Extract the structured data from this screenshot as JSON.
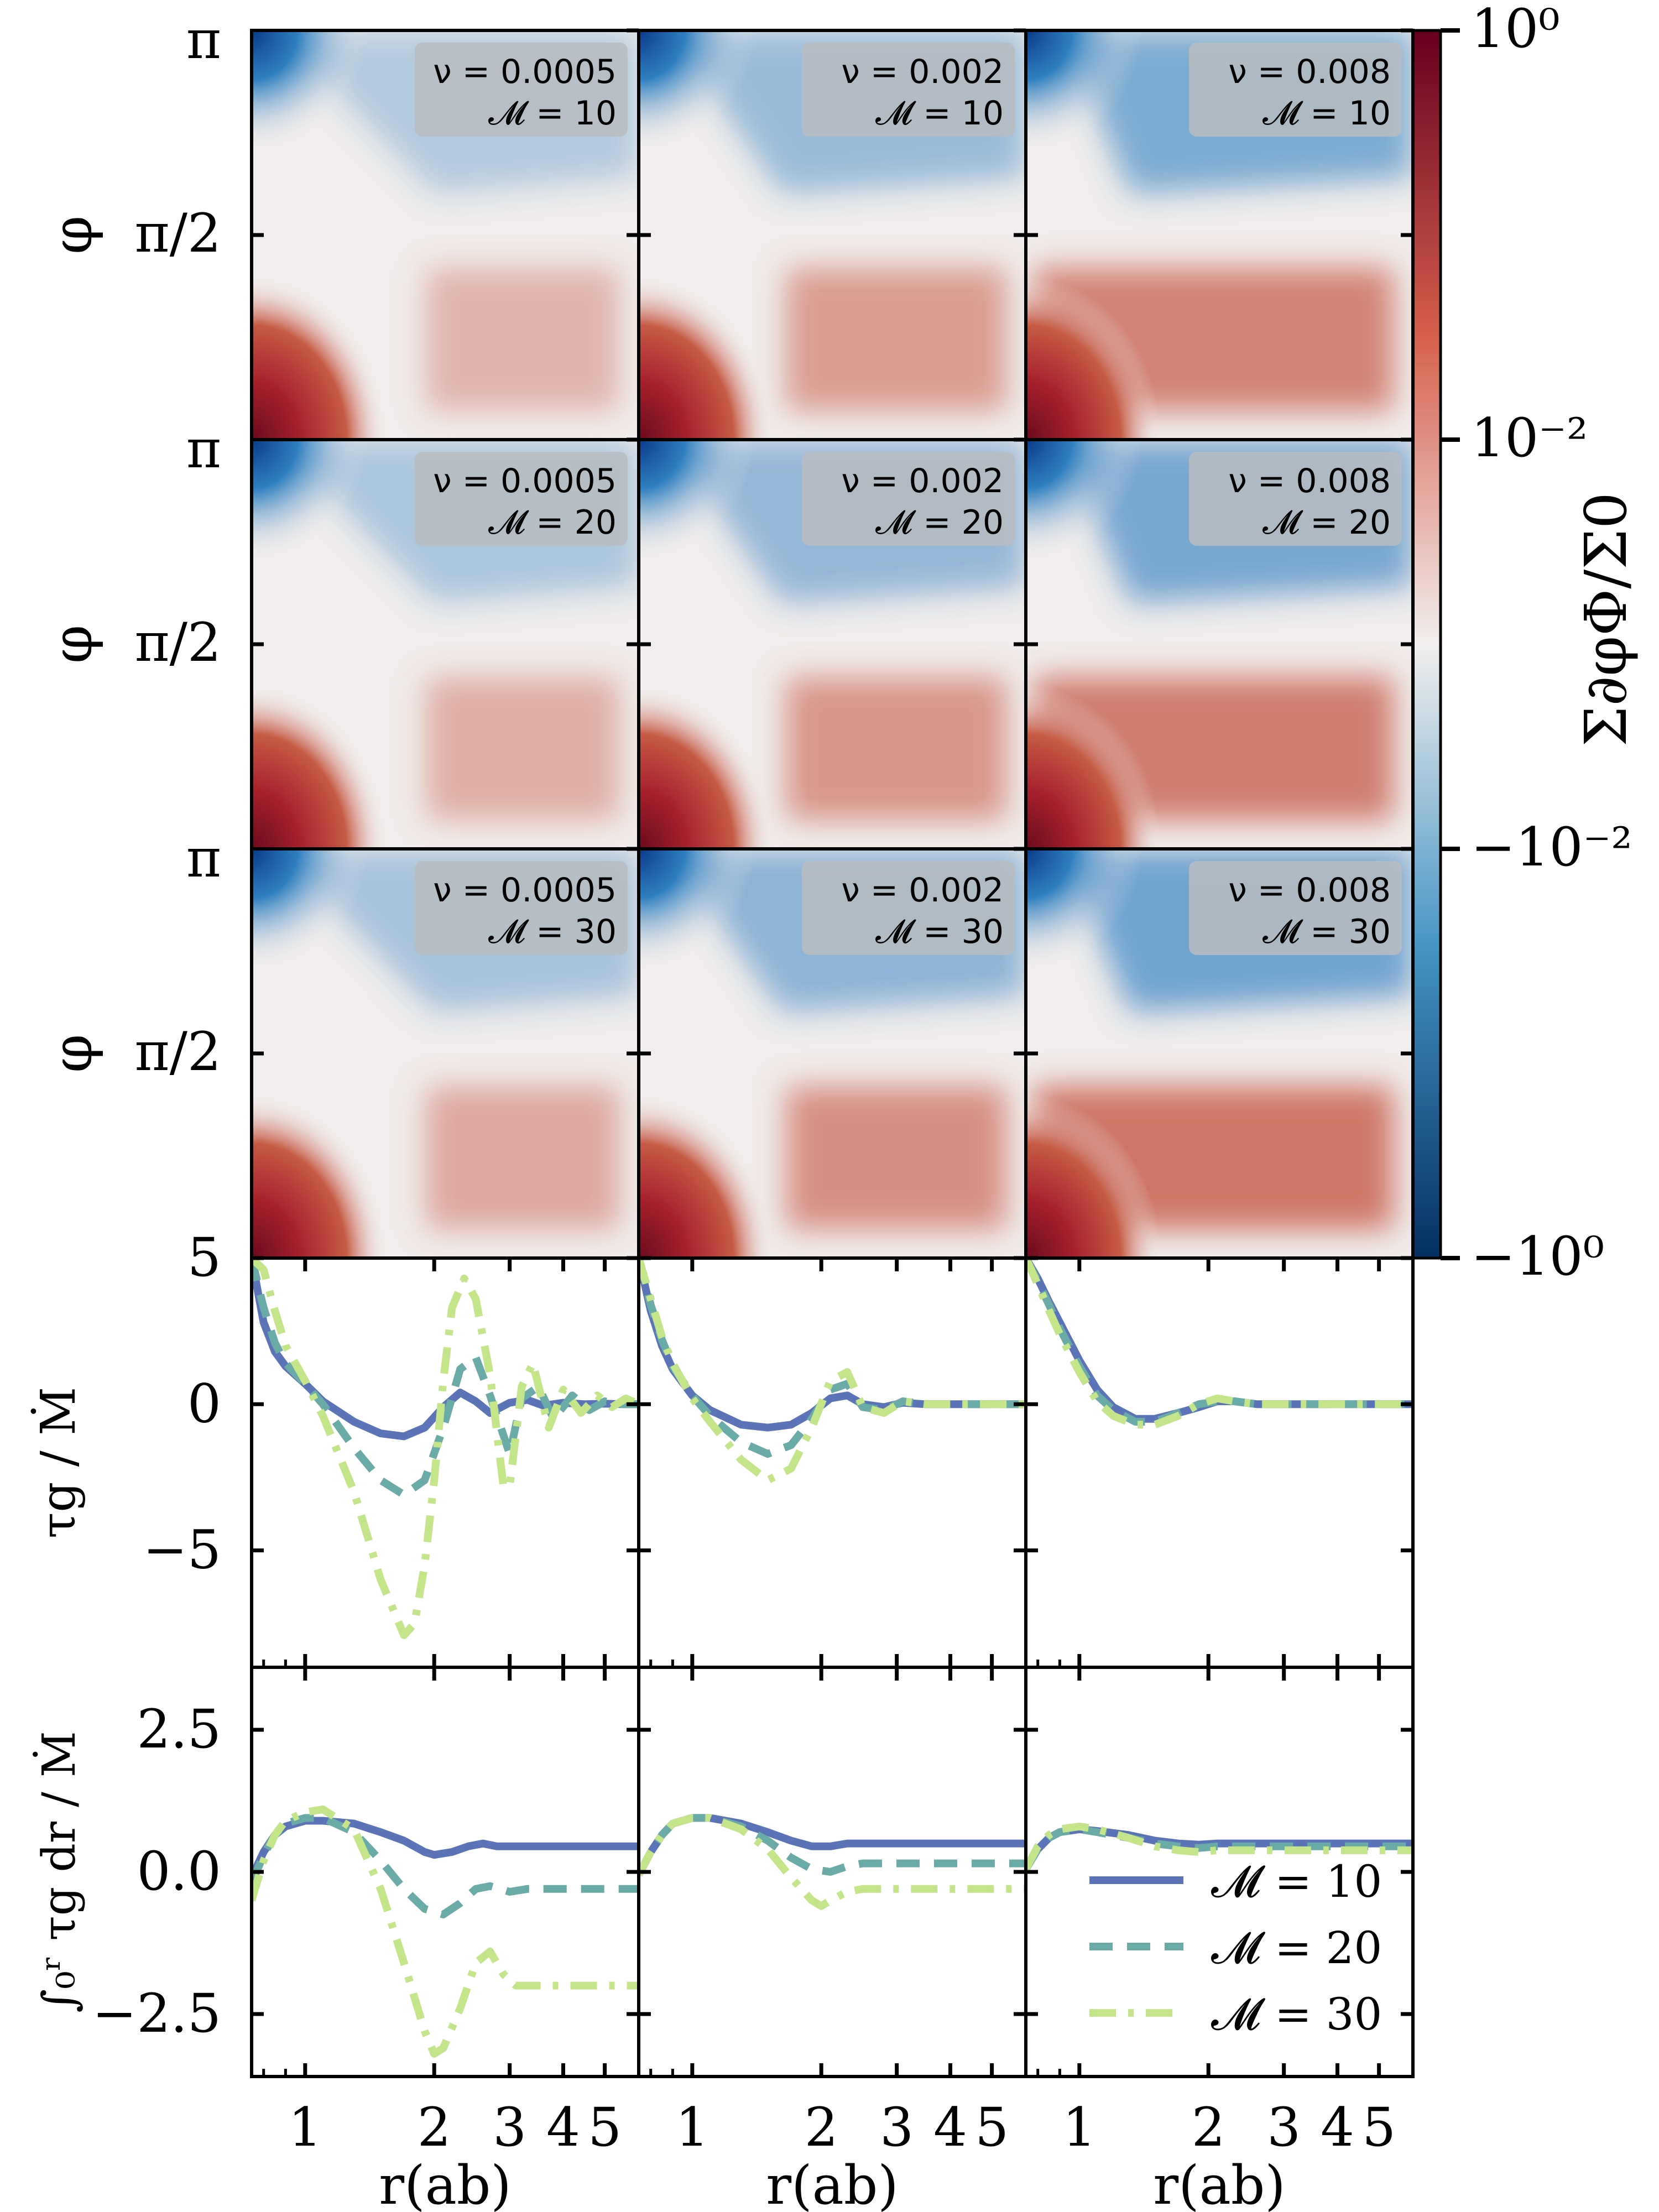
{
  "chart_data": [
    {
      "type": "heatmap",
      "description_of_field": "map panels",
      "y_ticks": [
        "π/2",
        "π"
      ],
      "y_label": "φ",
      "columns": [
        {
          "nu": "ν = 0.0005"
        },
        {
          "nu": "ν = 0.002"
        },
        {
          "nu": "ν = 0.008"
        }
      ],
      "rows": [
        {
          "mach": "𝓜 = 10"
        },
        {
          "mach": "𝓜 = 20"
        },
        {
          "mach": "𝓜 = 30"
        }
      ],
      "colorbar": {
        "label": "Σ∂φΦ/Σ0",
        "tick_labels": [
          "10⁰",
          "10⁻²",
          "−10⁻²",
          "−10⁰"
        ],
        "colors_top_to_bottom": [
          "#67001f",
          "#d6604d",
          "#f2efee",
          "#4393c3",
          "#053061"
        ]
      }
    },
    {
      "type": "line",
      "ylabel": "τg / Ṁ",
      "ylim": [
        -9,
        5
      ],
      "yticks": [
        "5",
        "0",
        "−5"
      ],
      "series_names": [
        "𝓜 = 10",
        "𝓜 = 20",
        "𝓜 = 30"
      ],
      "panels": [
        {
          "series": [
            {
              "name": "𝓜 = 10",
              "x": [
                0.75,
                0.8,
                0.85,
                0.9,
                1.0,
                1.1,
                1.3,
                1.5,
                1.7,
                1.9,
                2.1,
                2.3,
                2.5,
                2.7,
                3.0,
                3.3,
                3.6,
                4.0,
                4.5,
                5.0,
                5.5,
                6.0
              ],
              "values": [
                5,
                2.8,
                1.8,
                1.3,
                0.7,
                0.1,
                -0.6,
                -1.0,
                -1.1,
                -0.8,
                -0.1,
                0.4,
                0.1,
                -0.3,
                0.05,
                0.15,
                -0.05,
                0.05,
                0.0,
                0.02,
                0.0,
                0.0
              ]
            },
            {
              "name": "𝓜 = 20",
              "x": [
                0.75,
                0.8,
                0.85,
                0.9,
                1.0,
                1.1,
                1.3,
                1.5,
                1.7,
                1.9,
                2.1,
                2.3,
                2.5,
                2.7,
                3.0,
                3.2,
                3.5,
                3.8,
                4.2,
                4.6,
                5.0,
                5.5,
                6.0
              ],
              "values": [
                5,
                3.3,
                2.1,
                1.4,
                0.7,
                0.0,
                -1.5,
                -2.6,
                -3.1,
                -2.6,
                -0.8,
                1.2,
                1.6,
                0.3,
                -1.7,
                0.2,
                0.6,
                -0.5,
                0.3,
                -0.2,
                0.1,
                0.0,
                0.0
              ]
            },
            {
              "name": "𝓜 = 30",
              "x": [
                0.75,
                0.8,
                0.85,
                0.9,
                1.0,
                1.1,
                1.3,
                1.5,
                1.7,
                1.8,
                1.9,
                2.0,
                2.1,
                2.2,
                2.35,
                2.5,
                2.7,
                2.9,
                3.0,
                3.2,
                3.4,
                3.7,
                4.0,
                4.4,
                4.8,
                5.2,
                5.6,
                6.0
              ],
              "values": [
                5,
                4.6,
                3.2,
                2.0,
                0.8,
                -0.4,
                -3.0,
                -6.0,
                -7.9,
                -7.5,
                -5.5,
                -2.6,
                0.8,
                3.3,
                4.3,
                3.6,
                1.0,
                -2.8,
                -2.8,
                0.6,
                1.4,
                -0.8,
                0.5,
                -0.3,
                0.3,
                -0.1,
                0.2,
                0.0
              ]
            }
          ]
        },
        {
          "series": [
            {
              "name": "𝓜 = 10",
              "x": [
                0.75,
                0.8,
                0.85,
                0.9,
                1.0,
                1.1,
                1.3,
                1.5,
                1.7,
                1.9,
                2.1,
                2.3,
                2.5,
                2.8,
                3.1,
                3.5,
                4.0,
                5.0,
                6.0
              ],
              "values": [
                5,
                3.2,
                2.0,
                1.2,
                0.3,
                -0.2,
                -0.7,
                -0.8,
                -0.7,
                -0.3,
                0.2,
                0.3,
                0.0,
                -0.1,
                0.05,
                0.0,
                0.0,
                0.0,
                0.0
              ]
            },
            {
              "name": "𝓜 = 20",
              "x": [
                0.75,
                0.8,
                0.85,
                0.9,
                1.0,
                1.1,
                1.3,
                1.5,
                1.7,
                1.9,
                2.1,
                2.3,
                2.5,
                2.8,
                3.1,
                3.5,
                4.0,
                5.0,
                6.0
              ],
              "values": [
                5,
                3.4,
                2.2,
                1.3,
                0.3,
                -0.4,
                -1.3,
                -1.7,
                -1.4,
                -0.5,
                0.5,
                0.7,
                -0.1,
                -0.2,
                0.1,
                0.0,
                0.0,
                0.0,
                0.0
              ]
            },
            {
              "name": "𝓜 = 30",
              "x": [
                0.75,
                0.8,
                0.85,
                0.9,
                1.0,
                1.1,
                1.3,
                1.5,
                1.7,
                1.9,
                2.1,
                2.3,
                2.5,
                2.8,
                3.1,
                3.5,
                4.0,
                5.0,
                6.0
              ],
              "values": [
                5,
                3.6,
                2.3,
                1.4,
                0.2,
                -0.6,
                -1.9,
                -2.6,
                -2.2,
                -0.8,
                0.8,
                1.1,
                -0.1,
                -0.3,
                0.1,
                0.0,
                0.0,
                0.0,
                0.0
              ]
            }
          ]
        },
        {
          "series": [
            {
              "name": "𝓜 = 10",
              "x": [
                0.75,
                0.8,
                0.85,
                0.9,
                1.0,
                1.1,
                1.2,
                1.35,
                1.5,
                1.7,
                1.9,
                2.1,
                2.3,
                2.6,
                3.0,
                4.0,
                5.0,
                6.0
              ],
              "values": [
                5,
                4.3,
                3.5,
                2.8,
                1.5,
                0.5,
                -0.1,
                -0.5,
                -0.5,
                -0.3,
                -0.1,
                0.1,
                0.1,
                0.0,
                0.0,
                0.0,
                0.0,
                0.0
              ]
            },
            {
              "name": "𝓜 = 20",
              "x": [
                0.75,
                0.8,
                0.85,
                0.9,
                1.0,
                1.1,
                1.2,
                1.35,
                1.5,
                1.7,
                1.9,
                2.1,
                2.3,
                2.6,
                3.0,
                4.0,
                5.0,
                6.0
              ],
              "values": [
                5,
                4.2,
                3.4,
                2.6,
                1.3,
                0.3,
                -0.2,
                -0.6,
                -0.6,
                -0.3,
                0.0,
                0.1,
                0.1,
                0.0,
                0.0,
                0.0,
                0.0,
                0.0
              ]
            },
            {
              "name": "𝓜 = 30",
              "x": [
                0.75,
                0.8,
                0.85,
                0.9,
                1.0,
                1.1,
                1.2,
                1.35,
                1.5,
                1.7,
                1.9,
                2.1,
                2.3,
                2.6,
                3.0,
                4.0,
                5.0,
                6.0
              ],
              "values": [
                5,
                4.1,
                3.2,
                2.4,
                1.1,
                0.1,
                -0.4,
                -0.7,
                -0.7,
                -0.4,
                0.0,
                0.2,
                0.1,
                0.0,
                0.0,
                0.0,
                0.0,
                0.0
              ]
            }
          ]
        }
      ]
    },
    {
      "type": "line",
      "ylabel": "∫₀ʳ τg dr / Ṁ",
      "ylim": [
        -3.6,
        3.6
      ],
      "yticks": [
        "2.5",
        "0.0",
        "−2.5"
      ],
      "xlabel": "r(ab)",
      "xscale": "log",
      "xlim": [
        0.75,
        6.0
      ],
      "xticks": [
        "1",
        "2",
        "3",
        "4",
        "5"
      ],
      "legend": {
        "placement": "lower-right of third panel",
        "entries": [
          "𝓜 = 10",
          "𝓜 = 20",
          "𝓜 = 30"
        ]
      },
      "panels": [
        {
          "series": [
            {
              "name": "𝓜 = 10",
              "x": [
                0.75,
                0.8,
                0.85,
                0.9,
                1.0,
                1.1,
                1.3,
                1.5,
                1.7,
                1.9,
                2.0,
                2.2,
                2.4,
                2.6,
                2.8,
                3.0,
                3.5,
                4.0,
                5.0,
                6.0
              ],
              "values": [
                -0.1,
                0.35,
                0.65,
                0.8,
                0.9,
                0.9,
                0.85,
                0.7,
                0.55,
                0.35,
                0.3,
                0.35,
                0.45,
                0.5,
                0.45,
                0.45,
                0.45,
                0.45,
                0.45,
                0.45
              ]
            },
            {
              "name": "𝓜 = 20",
              "x": [
                0.75,
                0.8,
                0.85,
                0.9,
                1.0,
                1.1,
                1.3,
                1.5,
                1.7,
                1.9,
                2.1,
                2.3,
                2.5,
                2.7,
                3.0,
                3.3,
                3.6,
                4.0,
                5.0,
                6.0
              ],
              "values": [
                -0.2,
                0.3,
                0.65,
                0.85,
                0.95,
                0.95,
                0.7,
                0.2,
                -0.3,
                -0.65,
                -0.75,
                -0.55,
                -0.3,
                -0.25,
                -0.35,
                -0.3,
                -0.3,
                -0.3,
                -0.3,
                -0.3
              ]
            },
            {
              "name": "𝓜 = 30",
              "x": [
                0.75,
                0.8,
                0.85,
                0.9,
                1.0,
                1.1,
                1.3,
                1.5,
                1.7,
                1.9,
                2.0,
                2.1,
                2.3,
                2.5,
                2.7,
                2.9,
                3.1,
                3.4,
                3.8,
                4.2,
                5.0,
                6.0
              ],
              "values": [
                -0.5,
                0.2,
                0.65,
                0.9,
                1.05,
                1.1,
                0.75,
                -0.3,
                -1.6,
                -2.8,
                -3.2,
                -3.1,
                -2.4,
                -1.6,
                -1.4,
                -1.8,
                -2.0,
                -2.0,
                -2.0,
                -2.0,
                -2.0,
                -2.0
              ]
            }
          ]
        },
        {
          "series": [
            {
              "name": "𝓜 = 10",
              "x": [
                0.75,
                0.8,
                0.85,
                0.9,
                1.0,
                1.1,
                1.3,
                1.5,
                1.7,
                1.9,
                2.1,
                2.3,
                2.5,
                3.0,
                4.0,
                5.0,
                6.0
              ],
              "values": [
                -0.05,
                0.35,
                0.65,
                0.85,
                0.95,
                0.95,
                0.85,
                0.7,
                0.55,
                0.45,
                0.45,
                0.5,
                0.5,
                0.5,
                0.5,
                0.5,
                0.5
              ]
            },
            {
              "name": "𝓜 = 20",
              "x": [
                0.75,
                0.8,
                0.85,
                0.9,
                1.0,
                1.1,
                1.3,
                1.5,
                1.7,
                1.9,
                2.1,
                2.3,
                2.5,
                3.0,
                4.0,
                5.0,
                6.0
              ],
              "values": [
                -0.05,
                0.35,
                0.65,
                0.85,
                0.95,
                0.95,
                0.8,
                0.55,
                0.25,
                0.05,
                0.0,
                0.1,
                0.15,
                0.15,
                0.15,
                0.15,
                0.15
              ]
            },
            {
              "name": "𝓜 = 30",
              "x": [
                0.75,
                0.8,
                0.85,
                0.9,
                1.0,
                1.1,
                1.3,
                1.5,
                1.7,
                1.9,
                2.0,
                2.1,
                2.3,
                2.5,
                3.0,
                4.0,
                5.0,
                6.0
              ],
              "values": [
                -0.05,
                0.35,
                0.65,
                0.85,
                0.95,
                0.95,
                0.75,
                0.4,
                -0.1,
                -0.5,
                -0.6,
                -0.5,
                -0.35,
                -0.3,
                -0.3,
                -0.3,
                -0.3,
                -0.3
              ]
            }
          ]
        },
        {
          "series": [
            {
              "name": "𝓜 = 10",
              "x": [
                0.75,
                0.8,
                0.85,
                0.9,
                1.0,
                1.1,
                1.3,
                1.5,
                1.7,
                1.9,
                2.1,
                2.5,
                3.0,
                4.0,
                5.0,
                6.0
              ],
              "values": [
                0.05,
                0.4,
                0.6,
                0.7,
                0.75,
                0.72,
                0.65,
                0.55,
                0.5,
                0.48,
                0.5,
                0.5,
                0.5,
                0.5,
                0.5,
                0.5
              ]
            },
            {
              "name": "𝓜 = 20",
              "x": [
                0.75,
                0.8,
                0.85,
                0.9,
                1.0,
                1.1,
                1.3,
                1.5,
                1.7,
                1.9,
                2.1,
                2.5,
                3.0,
                4.0,
                5.0,
                6.0
              ],
              "values": [
                0.05,
                0.4,
                0.6,
                0.7,
                0.75,
                0.7,
                0.6,
                0.5,
                0.45,
                0.42,
                0.45,
                0.45,
                0.45,
                0.45,
                0.45,
                0.45
              ]
            },
            {
              "name": "𝓜 = 30",
              "x": [
                0.75,
                0.8,
                0.85,
                0.9,
                1.0,
                1.1,
                1.3,
                1.5,
                1.7,
                1.9,
                2.1,
                2.5,
                3.0,
                4.0,
                5.0,
                6.0
              ],
              "values": [
                0.05,
                0.45,
                0.65,
                0.75,
                0.8,
                0.75,
                0.6,
                0.45,
                0.38,
                0.35,
                0.38,
                0.38,
                0.38,
                0.38,
                0.38,
                0.38
              ]
            }
          ]
        }
      ]
    }
  ],
  "colors": {
    "mach10": "#5b74b8",
    "mach20": "#6aaaa7",
    "mach30": "#c4e58a",
    "red": "#c65a45",
    "deepRed": "#6a0a1c",
    "blue": "#2f7fc0",
    "deepBlue": "#0a3a8a",
    "neutral": "#f1edec"
  }
}
